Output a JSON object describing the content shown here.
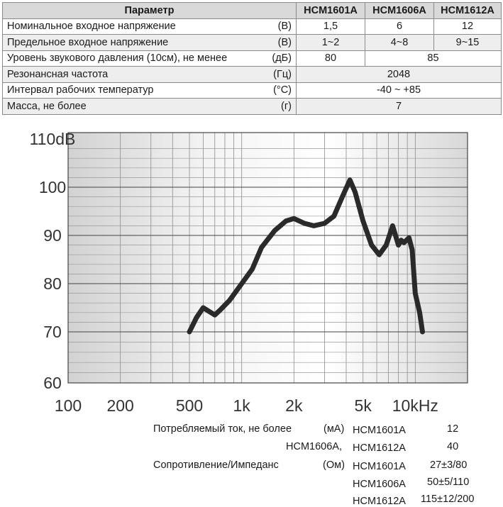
{
  "spec_table": {
    "headers": [
      "Параметр",
      "HCM1601A",
      "HCM1606A",
      "HCM1612A"
    ],
    "rows": [
      {
        "param": "Номинальное входное напряжение",
        "unit": "(В)",
        "values": [
          "1,5",
          "6",
          "12"
        ]
      },
      {
        "param": "Предельное входное напряжение",
        "unit": "(В)",
        "values": [
          "1~2",
          "4~8",
          "9~15"
        ]
      },
      {
        "param": "Уровень звукового давления (10см), не менее",
        "unit": "(дБ)",
        "values": [
          "80",
          "85"
        ]
      },
      {
        "param": "Резонансная частота",
        "unit": "(Гц)",
        "values": [
          "2048"
        ]
      },
      {
        "param": "Интервал рабочих температур",
        "unit": "(°С)",
        "values": [
          "-40 ~ +85"
        ]
      },
      {
        "param": "Масса, не более",
        "unit": "(г)",
        "values": [
          "7"
        ]
      }
    ]
  },
  "chart_data": {
    "type": "line",
    "x_scale": "log",
    "xlim": [
      100,
      20000
    ],
    "ylim": [
      60,
      110
    ],
    "grid": true,
    "x_tick_labels": [
      "100",
      "200",
      "500",
      "1k",
      "2k",
      "5k",
      "10kHz"
    ],
    "x_tick_values": [
      100,
      200,
      500,
      1000,
      2000,
      5000,
      10000
    ],
    "y_tick_labels": [
      "110dB",
      "100",
      "90",
      "80",
      "70",
      "60"
    ],
    "y_tick_values": [
      110,
      100,
      90,
      80,
      70,
      60
    ],
    "series": [
      {
        "x": [
          500,
          550,
          600,
          700,
          750,
          850,
          1000,
          1150,
          1300,
          1550,
          1800,
          2000,
          2300,
          2600,
          3000,
          3400,
          3800,
          4200,
          4500,
          5000,
          5600,
          6200,
          6800,
          7400,
          8000,
          8300,
          8600,
          9200,
          9600,
          10000,
          10600,
          11000
        ],
        "y": [
          70,
          73,
          75,
          73.5,
          74.5,
          76.5,
          80,
          83,
          87.5,
          91,
          93,
          93.5,
          92.5,
          92,
          92.5,
          94,
          98,
          101.5,
          99,
          93,
          88,
          86,
          88,
          92,
          88,
          89,
          88.5,
          89.5,
          87,
          78,
          74,
          70
        ]
      }
    ]
  },
  "info": {
    "current_label": "Потребляемый ток, не более",
    "current_unit": "(мА)",
    "current_rows": [
      {
        "models": "HCM1601A",
        "value": "12"
      },
      {
        "models": "HCM1606A,",
        "models2": "HCM1612A",
        "value": "40"
      }
    ],
    "resistance_label": "Сопротивление/Импеданс",
    "resistance_unit": "(Ом)",
    "resistance_rows": [
      {
        "model": "HCM1601A",
        "value": "27±3/80"
      },
      {
        "model": "HCM1606A",
        "value": "50±5/110"
      },
      {
        "model": "HCM1612A",
        "value": "115±12/200"
      }
    ]
  }
}
